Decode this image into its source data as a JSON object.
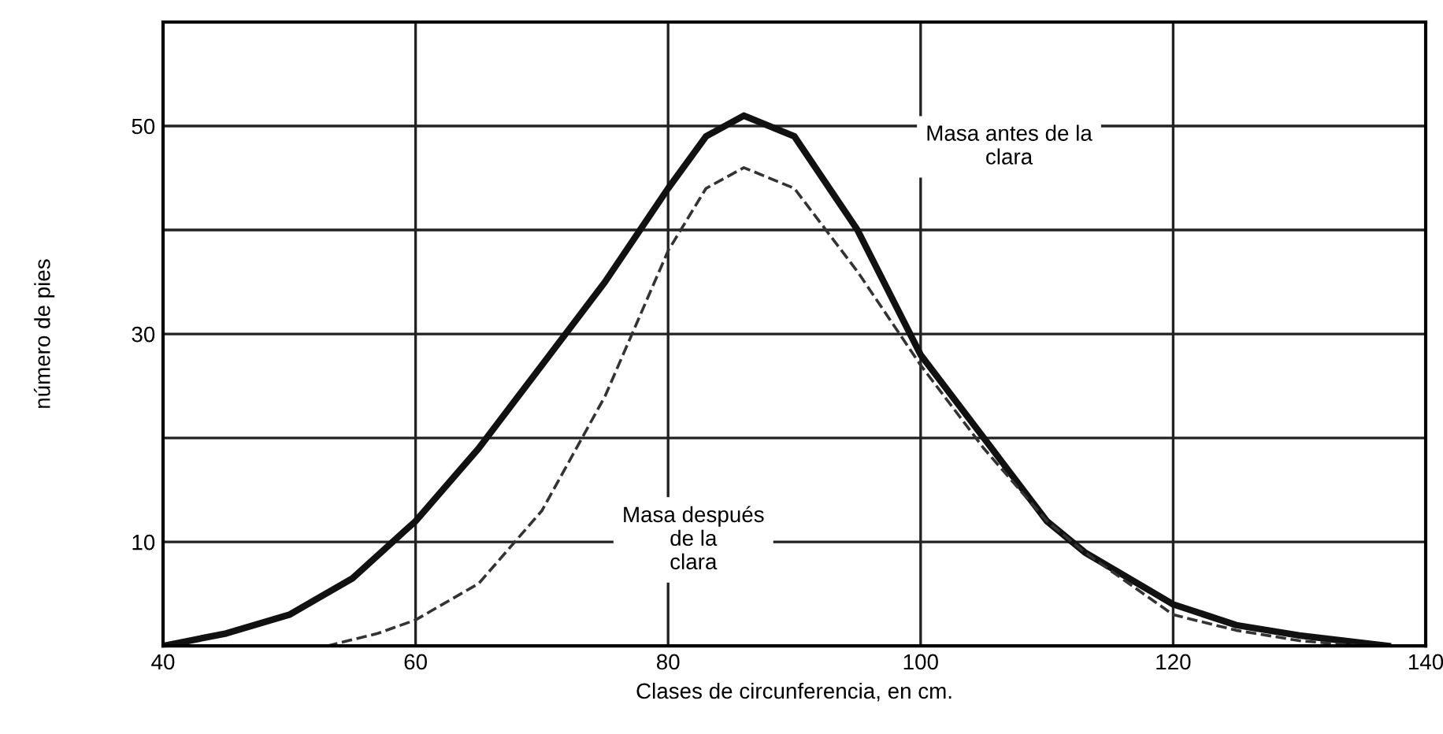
{
  "chart_data": {
    "type": "line",
    "xlabel": "Clases de circunferencia, en cm.",
    "ylabel": "número de pies",
    "xlim": [
      40,
      140
    ],
    "xticks": [
      40,
      60,
      80,
      100,
      120,
      140
    ],
    "ylim": [
      0,
      60
    ],
    "yticks": [
      {
        "value": 10,
        "label": "10"
      },
      {
        "value": 20,
        "label": null
      },
      {
        "value": 30,
        "label": "30"
      },
      {
        "value": 40,
        "label": null
      },
      {
        "value": 50,
        "label": "50"
      }
    ],
    "grid": true,
    "marker": "none",
    "series": [
      {
        "color": "#111111",
        "line_style": "solid",
        "x": [
          40,
          45,
          50,
          55,
          60,
          65,
          70,
          75,
          80,
          83,
          86,
          90,
          95,
          100,
          105,
          110,
          113,
          120,
          125,
          130,
          137
        ],
        "values": [
          0,
          1.2,
          3,
          6.5,
          12,
          19,
          27,
          35,
          44,
          49,
          51,
          49,
          40,
          28,
          20,
          12,
          9,
          4,
          2,
          1,
          0
        ]
      },
      {
        "color": "#333333",
        "line_style": "dashed",
        "x": [
          53,
          57,
          60,
          65,
          70,
          75,
          80,
          83,
          86,
          90,
          95,
          100,
          105,
          110,
          113,
          120,
          125,
          130,
          135
        ],
        "values": [
          0,
          1.2,
          2.5,
          6,
          13,
          24,
          38,
          44,
          46,
          44,
          36,
          27,
          19,
          12,
          9,
          3,
          1.5,
          0.5,
          0
        ]
      }
    ],
    "annotations": [
      "Masa antes de la\nclara",
      "Masa después\nde la\nclara"
    ]
  }
}
